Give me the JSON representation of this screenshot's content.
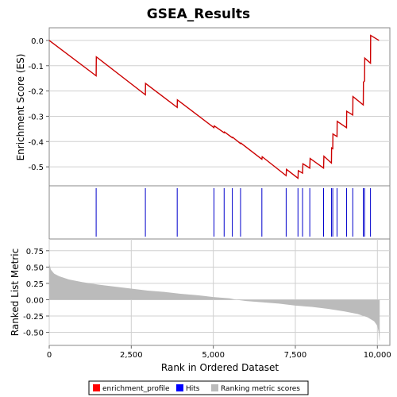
{
  "title": "GSEA_Results",
  "chart_data": [
    {
      "type": "line",
      "panel": "enrichment",
      "ylabel": "Enrichment Score (ES)",
      "xlim": [
        0,
        10380
      ],
      "ylim": [
        -0.575,
        0.05
      ],
      "yticks": [
        0.0,
        -0.1,
        -0.2,
        -0.3,
        -0.4,
        -0.5
      ],
      "ytick_labels": [
        "0.0",
        "-0.1",
        "-0.2",
        "-0.3",
        "-0.4",
        "-0.5"
      ],
      "grid": true,
      "line_color": "#cc0000",
      "points": [
        [
          0,
          0.0
        ],
        [
          1430,
          -0.14
        ],
        [
          1435,
          -0.065
        ],
        [
          2930,
          -0.215
        ],
        [
          2935,
          -0.17
        ],
        [
          3900,
          -0.265
        ],
        [
          3905,
          -0.235
        ],
        [
          5020,
          -0.345
        ],
        [
          5030,
          -0.338
        ],
        [
          5330,
          -0.365
        ],
        [
          5340,
          -0.362
        ],
        [
          5580,
          -0.385
        ],
        [
          5590,
          -0.383
        ],
        [
          5830,
          -0.408
        ],
        [
          5840,
          -0.406
        ],
        [
          6480,
          -0.47
        ],
        [
          6490,
          -0.46
        ],
        [
          7220,
          -0.535
        ],
        [
          7230,
          -0.51
        ],
        [
          7580,
          -0.545
        ],
        [
          7590,
          -0.515
        ],
        [
          7720,
          -0.525
        ],
        [
          7730,
          -0.488
        ],
        [
          7940,
          -0.505
        ],
        [
          7950,
          -0.467
        ],
        [
          8360,
          -0.505
        ],
        [
          8370,
          -0.458
        ],
        [
          8600,
          -0.485
        ],
        [
          8605,
          -0.425
        ],
        [
          8640,
          -0.428
        ],
        [
          8645,
          -0.37
        ],
        [
          8770,
          -0.38
        ],
        [
          8775,
          -0.32
        ],
        [
          9060,
          -0.345
        ],
        [
          9065,
          -0.28
        ],
        [
          9250,
          -0.295
        ],
        [
          9255,
          -0.222
        ],
        [
          9570,
          -0.255
        ],
        [
          9575,
          -0.165
        ],
        [
          9610,
          -0.16
        ],
        [
          9615,
          -0.07
        ],
        [
          9790,
          -0.09
        ],
        [
          9795,
          0.02
        ],
        [
          10050,
          0.0
        ]
      ]
    },
    {
      "type": "scatter",
      "panel": "hits",
      "marker": "vertical-line",
      "color": "#0000cc",
      "hits": [
        1430,
        2930,
        3900,
        5020,
        5330,
        5580,
        5830,
        6480,
        7220,
        7580,
        7720,
        7940,
        8360,
        8600,
        8640,
        8770,
        9060,
        9250,
        9570,
        9610,
        9790
      ]
    },
    {
      "type": "area",
      "panel": "ranking",
      "ylabel": "Ranked List Metric",
      "xlabel": "Rank in Ordered Dataset",
      "xlim": [
        0,
        10380
      ],
      "ylim": [
        -0.7,
        0.93
      ],
      "yticks": [
        0.75,
        0.5,
        0.25,
        0.0,
        -0.25,
        -0.5
      ],
      "ytick_labels": [
        "0.75",
        "0.50",
        "0.25",
        "0.00",
        "-0.25",
        "-0.50"
      ],
      "xticks": [
        0,
        2500,
        5000,
        7500,
        10000
      ],
      "xtick_labels": [
        "0",
        "2,500",
        "5,000",
        "7,500",
        "10,000"
      ],
      "grid": true,
      "fill_color": "#bbbbbb",
      "points": [
        [
          0,
          0.56
        ],
        [
          50,
          0.46
        ],
        [
          150,
          0.4
        ],
        [
          300,
          0.36
        ],
        [
          600,
          0.31
        ],
        [
          1000,
          0.27
        ],
        [
          1500,
          0.23
        ],
        [
          2000,
          0.2
        ],
        [
          2500,
          0.17
        ],
        [
          3000,
          0.14
        ],
        [
          3500,
          0.12
        ],
        [
          4000,
          0.09
        ],
        [
          4500,
          0.07
        ],
        [
          5000,
          0.04
        ],
        [
          5500,
          0.02
        ],
        [
          5700,
          0.0
        ],
        [
          6000,
          -0.02
        ],
        [
          6500,
          -0.04
        ],
        [
          7000,
          -0.06
        ],
        [
          7500,
          -0.09
        ],
        [
          8000,
          -0.11
        ],
        [
          8500,
          -0.14
        ],
        [
          9000,
          -0.18
        ],
        [
          9400,
          -0.22
        ],
        [
          9700,
          -0.27
        ],
        [
          9900,
          -0.33
        ],
        [
          10000,
          -0.4
        ],
        [
          10040,
          -0.5
        ],
        [
          10060,
          -0.62
        ],
        [
          10070,
          -0.63
        ]
      ]
    }
  ],
  "legend": {
    "placement": "bottom",
    "items": [
      {
        "label": "enrichment_profile",
        "color": "#ff0000"
      },
      {
        "label": "Hits",
        "color": "#0000ff"
      },
      {
        "label": "Ranking metric scores",
        "color": "#bbbbbb"
      }
    ]
  }
}
